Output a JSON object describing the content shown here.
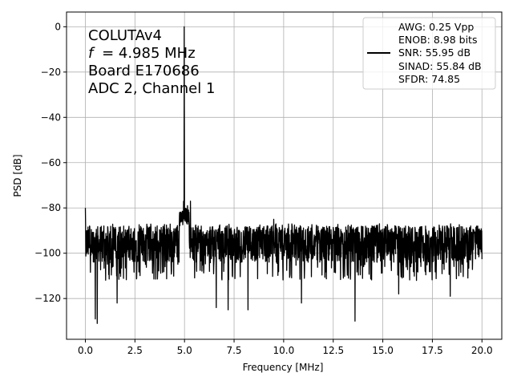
{
  "chart_data": {
    "type": "line",
    "xlabel": "Frequency [MHz]",
    "ylabel": "PSD [dB]",
    "xlim": [
      -0.95,
      21.0
    ],
    "ylim": [
      -138,
      6.5
    ],
    "xticks": [
      0.0,
      2.5,
      5.0,
      7.5,
      10.0,
      12.5,
      15.0,
      17.5,
      20.0
    ],
    "xtick_labels": [
      "0.0",
      "2.5",
      "5.0",
      "7.5",
      "10.0",
      "12.5",
      "15.0",
      "17.5",
      "20.0"
    ],
    "yticks": [
      0,
      -20,
      -40,
      -60,
      -80,
      -100,
      -120
    ],
    "ytick_labels": [
      "0",
      "−20",
      "−40",
      "−60",
      "−80",
      "−100",
      "−120"
    ],
    "grid": true,
    "annotation": {
      "lines": [
        "COLUTAv4",
        "= 4.985 MHz",
        "Board E170686",
        "ADC 2, Channel 1"
      ],
      "italic_symbol": "f"
    },
    "legend": {
      "placement": "top-right",
      "entries": [
        "AWG: 0.25 Vpp",
        "ENOB: 8.98 bits",
        "SNR: 55.95 dB",
        "SINAD: 55.84 dB",
        "SFDR: 74.85"
      ]
    },
    "series": [
      {
        "color": "#000000",
        "signal_peak": {
          "x": 4.985,
          "y": 0
        },
        "noise_floor_mean": -96,
        "noise_floor_upper": -87,
        "spikes": [
          {
            "x": 0.0,
            "y": -80
          },
          {
            "x": 0.5,
            "y": -129
          },
          {
            "x": 0.6,
            "y": -131
          },
          {
            "x": 1.6,
            "y": -122
          },
          {
            "x": 4.95,
            "y": -77
          },
          {
            "x": 5.15,
            "y": -79
          },
          {
            "x": 5.3,
            "y": -77
          },
          {
            "x": 6.6,
            "y": -124
          },
          {
            "x": 7.2,
            "y": -125
          },
          {
            "x": 8.2,
            "y": -125
          },
          {
            "x": 9.5,
            "y": -85
          },
          {
            "x": 10.9,
            "y": -122
          },
          {
            "x": 13.6,
            "y": -130
          },
          {
            "x": 15.8,
            "y": -118
          },
          {
            "x": 18.4,
            "y": -119
          }
        ]
      }
    ]
  }
}
